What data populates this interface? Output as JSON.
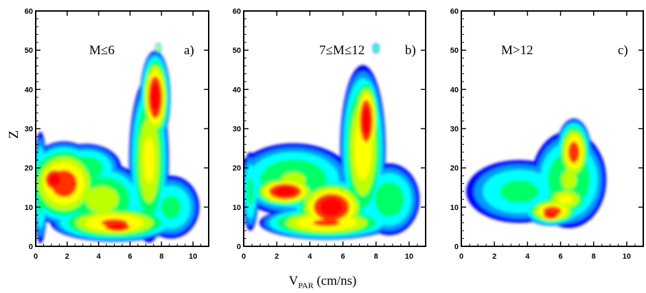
{
  "chart_data": [
    {
      "type": "heatmap",
      "panel": "a)",
      "selection": "M≤6",
      "xlim": [
        0,
        11
      ],
      "ylim": [
        0,
        60
      ],
      "xticks": [
        0,
        2,
        4,
        6,
        8,
        10
      ],
      "yticks": [
        0,
        10,
        20,
        30,
        40,
        50,
        60
      ],
      "blobs": [
        {
          "x": 0.3,
          "y": 15,
          "rx": 0.45,
          "ry": 14,
          "level": 0.55
        },
        {
          "x": 1.8,
          "y": 16,
          "rx": 2.4,
          "ry": 10,
          "level": 0.9
        },
        {
          "x": 1.2,
          "y": 17,
          "rx": 1.2,
          "ry": 5,
          "level": 1.0
        },
        {
          "x": 3.2,
          "y": 20,
          "rx": 2.2,
          "ry": 6,
          "level": 0.55
        },
        {
          "x": 4.2,
          "y": 12,
          "rx": 2.8,
          "ry": 9,
          "level": 0.65
        },
        {
          "x": 5.0,
          "y": 6,
          "rx": 3.8,
          "ry": 4.5,
          "level": 0.85
        },
        {
          "x": 5.2,
          "y": 5,
          "rx": 1.6,
          "ry": 2.3,
          "level": 1.0
        },
        {
          "x": 7.2,
          "y": 22,
          "rx": 1.2,
          "ry": 20,
          "level": 0.75
        },
        {
          "x": 7.6,
          "y": 38,
          "rx": 0.9,
          "ry": 11,
          "level": 1.0
        },
        {
          "x": 8.6,
          "y": 10,
          "rx": 1.8,
          "ry": 8,
          "level": 0.5
        },
        {
          "x": 7.8,
          "y": 50.5,
          "rx": 0.2,
          "ry": 1.2,
          "level": 0.75
        }
      ]
    },
    {
      "type": "heatmap",
      "panel": "b)",
      "selection": "7≤M≤12",
      "xlim": [
        0,
        11
      ],
      "ylim": [
        0,
        60
      ],
      "xticks": [
        0,
        2,
        4,
        6,
        8,
        10
      ],
      "yticks": [
        0,
        10,
        20,
        30,
        40,
        50,
        60
      ],
      "blobs": [
        {
          "x": 0.4,
          "y": 14,
          "rx": 0.5,
          "ry": 10,
          "level": 0.5
        },
        {
          "x": 3.0,
          "y": 17,
          "rx": 3.5,
          "ry": 9,
          "level": 0.6
        },
        {
          "x": 2.5,
          "y": 14,
          "rx": 2.0,
          "ry": 4,
          "level": 1.0
        },
        {
          "x": 5.3,
          "y": 10,
          "rx": 2.2,
          "ry": 7,
          "level": 1.0
        },
        {
          "x": 5.0,
          "y": 6,
          "rx": 3.8,
          "ry": 4,
          "level": 0.85
        },
        {
          "x": 7.2,
          "y": 25,
          "rx": 1.3,
          "ry": 20,
          "level": 0.8
        },
        {
          "x": 7.4,
          "y": 32,
          "rx": 0.8,
          "ry": 11,
          "level": 1.0
        },
        {
          "x": 8.8,
          "y": 12,
          "rx": 1.8,
          "ry": 9,
          "level": 0.55
        },
        {
          "x": 8.0,
          "y": 50.5,
          "rx": 0.2,
          "ry": 1.2,
          "level": 0.6
        }
      ]
    },
    {
      "type": "heatmap",
      "panel": "c)",
      "selection": "M>12",
      "xlim": [
        0,
        11
      ],
      "ylim": [
        0,
        60
      ],
      "xticks": [
        0,
        2,
        4,
        6,
        8,
        10
      ],
      "yticks": [
        0,
        10,
        20,
        30,
        40,
        50,
        60
      ],
      "blobs": [
        {
          "x": 3.5,
          "y": 14,
          "rx": 3.2,
          "ry": 8,
          "level": 0.5
        },
        {
          "x": 6.5,
          "y": 17,
          "rx": 2.2,
          "ry": 12,
          "level": 0.6
        },
        {
          "x": 6.8,
          "y": 24,
          "rx": 1.0,
          "ry": 8,
          "level": 0.9
        },
        {
          "x": 5.5,
          "y": 9,
          "rx": 1.6,
          "ry": 3.5,
          "level": 0.9
        },
        {
          "x": 5.4,
          "y": 8,
          "rx": 0.9,
          "ry": 2,
          "level": 1.0
        },
        {
          "x": 6.3,
          "y": 12,
          "rx": 1.5,
          "ry": 4,
          "level": 0.75
        }
      ]
    }
  ],
  "axes": {
    "xlabel_main": "V",
    "xlabel_sub": "PAR",
    "xlabel_unit": " (cm/ns)",
    "ylabel": "Z"
  }
}
